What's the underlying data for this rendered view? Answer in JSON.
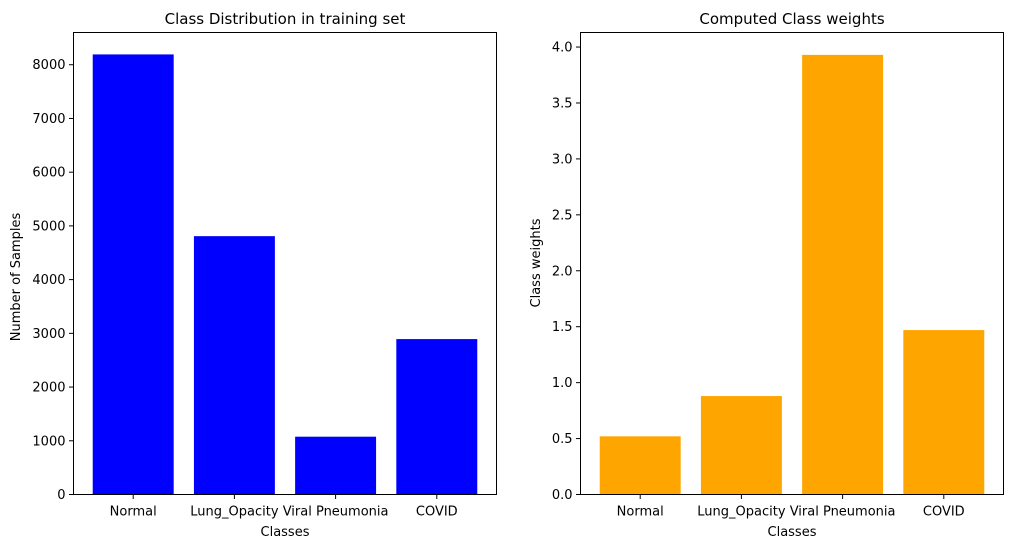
{
  "chart_data": [
    {
      "type": "bar",
      "title": "Class Distribution in training set",
      "xlabel": "Classes",
      "ylabel": "Number of Samples",
      "categories": [
        "Normal",
        "Lung_Opacity",
        "Viral Pneumonia",
        "COVID"
      ],
      "values": [
        8192,
        4809,
        1076,
        2893
      ],
      "ylim": [
        0,
        8600
      ],
      "yticks": [
        0,
        1000,
        2000,
        3000,
        4000,
        5000,
        6000,
        7000,
        8000
      ],
      "ytick_labels": [
        "0",
        "1000",
        "2000",
        "3000",
        "4000",
        "5000",
        "6000",
        "7000",
        "8000"
      ],
      "color": "#0000ff",
      "grid": false
    },
    {
      "type": "bar",
      "title": "Computed Class weights",
      "xlabel": "Classes",
      "ylabel": "Class weights",
      "categories": [
        "Normal",
        "Lung_Opacity",
        "Viral Pneumonia",
        "COVID"
      ],
      "values": [
        0.52,
        0.88,
        3.93,
        1.47
      ],
      "ylim": [
        0,
        4.13
      ],
      "yticks": [
        0,
        0.5,
        1.0,
        1.5,
        2.0,
        2.5,
        3.0,
        3.5,
        4.0
      ],
      "ytick_labels": [
        "0.0",
        "0.5",
        "1.0",
        "1.5",
        "2.0",
        "2.5",
        "3.0",
        "3.5",
        "4.0"
      ],
      "color": "#ffa500",
      "grid": false
    }
  ]
}
